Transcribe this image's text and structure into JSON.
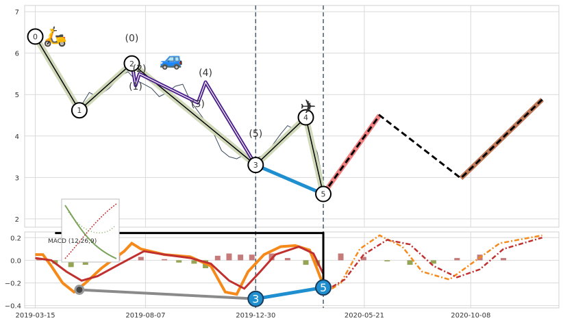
{
  "chart_data": [
    {
      "type": "line",
      "panel": "price",
      "x_range": [
        "2019-03-01",
        "2021-02-01"
      ],
      "ylim": [
        1.8,
        7.15
      ],
      "y_ticks": [
        2,
        3,
        4,
        5,
        6,
        7
      ],
      "grid": true,
      "vertical_markers": [
        "2019-12-30",
        "2020-03-28"
      ],
      "price_series": [
        [
          "2019-03-15",
          6.35
        ],
        [
          "2019-03-25",
          6.05
        ],
        [
          "2019-04-05",
          5.85
        ],
        [
          "2019-04-15",
          5.55
        ],
        [
          "2019-04-25",
          5.15
        ],
        [
          "2019-05-05",
          4.75
        ],
        [
          "2019-05-15",
          4.75
        ],
        [
          "2019-05-25",
          5.05
        ],
        [
          "2019-06-05",
          4.95
        ],
        [
          "2019-06-20",
          5.15
        ],
        [
          "2019-07-05",
          5.45
        ],
        [
          "2019-07-15",
          5.55
        ],
        [
          "2019-07-25",
          5.35
        ],
        [
          "2019-08-05",
          5.25
        ],
        [
          "2019-08-15",
          5.15
        ],
        [
          "2019-08-25",
          4.95
        ],
        [
          "2019-09-05",
          5.05
        ],
        [
          "2019-09-15",
          5.2
        ],
        [
          "2019-09-25",
          5.25
        ],
        [
          "2019-10-05",
          4.85
        ],
        [
          "2019-10-15",
          4.6
        ],
        [
          "2019-10-25",
          4.35
        ],
        [
          "2019-11-05",
          4.05
        ],
        [
          "2019-11-15",
          3.65
        ],
        [
          "2019-11-25",
          3.5
        ],
        [
          "2019-12-05",
          3.45
        ],
        [
          "2019-12-15",
          3.55
        ],
        [
          "2019-12-30",
          3.45
        ],
        [
          "2020-01-10",
          3.55
        ],
        [
          "2020-01-20",
          3.75
        ],
        [
          "2020-02-01",
          4.05
        ],
        [
          "2020-02-10",
          4.25
        ],
        [
          "2020-02-20",
          4.15
        ],
        [
          "2020-03-01",
          4.35
        ],
        [
          "2020-03-10",
          4.05
        ],
        [
          "2020-03-20",
          3.6
        ],
        [
          "2020-03-28",
          2.85
        ]
      ],
      "zigzag_levels": [
        {
          "label": "0",
          "date": "2019-03-15",
          "value": 6.4
        },
        {
          "label": "1",
          "date": "2019-05-12",
          "value": 4.62
        },
        {
          "label": "2",
          "date": "2019-07-20",
          "value": 5.75
        },
        {
          "label": "3",
          "date": "2019-12-30",
          "value": 3.3
        },
        {
          "label": "4",
          "date": "2020-03-05",
          "value": 4.45
        },
        {
          "label": "5",
          "date": "2020-03-28",
          "value": 2.6
        }
      ],
      "sub_wave_labels": [
        {
          "label": "(0)",
          "date": "2019-07-20",
          "value": 6.28
        },
        {
          "label": "(1)",
          "date": "2019-07-25",
          "value": 5.12
        },
        {
          "label": "(2)",
          "date": "2019-07-30",
          "value": 5.55
        },
        {
          "label": "(3)",
          "date": "2019-10-15",
          "value": 4.7
        },
        {
          "label": "(4)",
          "date": "2019-10-25",
          "value": 5.45
        },
        {
          "label": "(5)",
          "date": "2019-12-30",
          "value": 3.98
        }
      ],
      "sub_wave": [
        [
          "2019-07-20",
          5.75
        ],
        [
          "2019-07-25",
          5.22
        ],
        [
          "2019-07-30",
          5.5
        ],
        [
          "2019-10-15",
          4.8
        ],
        [
          "2019-10-25",
          5.3
        ],
        [
          "2019-12-30",
          3.3
        ]
      ],
      "connector_3_to_5": [
        [
          "2019-12-30",
          3.3
        ],
        [
          "2020-03-28",
          2.6
        ]
      ],
      "projection_pink": [
        [
          "2020-03-28",
          2.6
        ],
        [
          "2020-06-10",
          4.5
        ]
      ],
      "projection_path": [
        [
          "2020-03-28",
          2.6
        ],
        [
          "2020-06-10",
          4.5
        ],
        [
          "2020-09-25",
          2.98
        ],
        [
          "2021-01-10",
          4.88
        ]
      ],
      "projection_brown": [
        [
          "2020-09-25",
          2.98
        ],
        [
          "2021-01-10",
          4.88
        ]
      ],
      "icons": [
        {
          "name": "scooter-icon",
          "glyph": "🛵",
          "date": "2019-04-10",
          "value": 6.25
        },
        {
          "name": "car-icon",
          "glyph": "🚙",
          "date": "2019-09-10",
          "value": 5.7
        },
        {
          "name": "airplane-icon",
          "glyph": "✈",
          "date": "2020-03-08",
          "value": 4.55
        }
      ]
    },
    {
      "type": "line",
      "panel": "macd",
      "legend_label": "MACD (12,26,9)",
      "x_range": [
        "2019-03-01",
        "2021-02-01"
      ],
      "ylim": [
        -0.42,
        0.25
      ],
      "y_ticks": [
        0.2,
        0.0,
        -0.2,
        -0.4
      ],
      "tick_labels_y": [
        "0.2",
        "0.0",
        "−0.2",
        "−0.4"
      ],
      "x_tick_labels": [
        "2019-03-15",
        "2019-08-07",
        "2019-12-30",
        "2020-05-21",
        "2020-10-08"
      ],
      "x_ticks": [
        "2019-03-15",
        "2019-08-07",
        "2019-12-30",
        "2020-05-21",
        "2020-10-08"
      ],
      "grid": true,
      "macd_orange": [
        [
          "2019-03-15",
          0.05
        ],
        [
          "2019-03-25",
          0.05
        ],
        [
          "2019-04-05",
          -0.05
        ],
        [
          "2019-04-20",
          -0.2
        ],
        [
          "2019-05-05",
          -0.28
        ],
        [
          "2019-05-20",
          -0.2
        ],
        [
          "2019-06-10",
          -0.07
        ],
        [
          "2019-07-10",
          0.08
        ],
        [
          "2019-07-20",
          0.15
        ],
        [
          "2019-08-01",
          0.1
        ],
        [
          "2019-09-01",
          0.05
        ],
        [
          "2019-10-05",
          0.03
        ],
        [
          "2019-11-01",
          -0.05
        ],
        [
          "2019-11-20",
          -0.28
        ],
        [
          "2019-12-05",
          -0.3
        ],
        [
          "2019-12-20",
          -0.1
        ],
        [
          "2020-01-10",
          0.05
        ],
        [
          "2020-02-01",
          0.12
        ],
        [
          "2020-02-20",
          0.13
        ],
        [
          "2020-03-10",
          0.09
        ],
        [
          "2020-03-20",
          -0.08
        ],
        [
          "2020-03-28",
          -0.22
        ]
      ],
      "macd_red": [
        [
          "2019-03-15",
          0.02
        ],
        [
          "2019-04-05",
          0.0
        ],
        [
          "2019-04-25",
          -0.1
        ],
        [
          "2019-05-15",
          -0.18
        ],
        [
          "2019-06-05",
          -0.14
        ],
        [
          "2019-07-05",
          -0.03
        ],
        [
          "2019-08-05",
          0.08
        ],
        [
          "2019-09-01",
          0.05
        ],
        [
          "2019-10-05",
          0.02
        ],
        [
          "2019-11-01",
          -0.03
        ],
        [
          "2019-11-25",
          -0.18
        ],
        [
          "2019-12-15",
          -0.25
        ],
        [
          "2020-01-05",
          -0.1
        ],
        [
          "2020-01-25",
          0.05
        ],
        [
          "2020-02-25",
          0.12
        ],
        [
          "2020-03-15",
          0.06
        ],
        [
          "2020-03-28",
          -0.12
        ]
      ],
      "macd_proj_orange": [
        [
          "2020-03-28",
          -0.3
        ],
        [
          "2020-04-20",
          -0.2
        ],
        [
          "2020-05-15",
          0.1
        ],
        [
          "2020-06-10",
          0.22
        ],
        [
          "2020-07-10",
          0.12
        ],
        [
          "2020-08-05",
          -0.1
        ],
        [
          "2020-09-10",
          -0.17
        ],
        [
          "2020-10-15",
          0.0
        ],
        [
          "2020-11-15",
          0.15
        ],
        [
          "2021-01-10",
          0.22
        ]
      ],
      "macd_proj_red": [
        [
          "2020-03-28",
          -0.28
        ],
        [
          "2020-04-25",
          -0.17
        ],
        [
          "2020-05-20",
          0.05
        ],
        [
          "2020-06-20",
          0.18
        ],
        [
          "2020-07-20",
          0.14
        ],
        [
          "2020-08-20",
          -0.05
        ],
        [
          "2020-09-20",
          -0.15
        ],
        [
          "2020-10-20",
          -0.08
        ],
        [
          "2020-11-20",
          0.1
        ],
        [
          "2021-01-10",
          0.2
        ]
      ],
      "histogram": [
        [
          "2019-03-20",
          0.02
        ],
        [
          "2019-04-10",
          -0.03
        ],
        [
          "2019-05-01",
          -0.06
        ],
        [
          "2019-05-20",
          -0.04
        ],
        [
          "2019-06-10",
          0.03
        ],
        [
          "2019-07-01",
          0.04
        ],
        [
          "2019-08-01",
          0.03
        ],
        [
          "2019-09-01",
          0.01
        ],
        [
          "2019-09-20",
          -0.02
        ],
        [
          "2019-10-10",
          -0.03
        ],
        [
          "2019-10-25",
          -0.07
        ],
        [
          "2019-11-10",
          0.04
        ],
        [
          "2019-11-25",
          0.06
        ],
        [
          "2019-12-10",
          0.05
        ],
        [
          "2019-12-25",
          0.05
        ],
        [
          "2020-01-20",
          0.06
        ],
        [
          "2020-02-10",
          0.02
        ],
        [
          "2020-03-05",
          -0.04
        ],
        [
          "2020-03-20",
          -0.05
        ],
        [
          "2020-04-20",
          0.06
        ],
        [
          "2020-05-20",
          0.03
        ],
        [
          "2020-06-20",
          -0.01
        ],
        [
          "2020-07-20",
          -0.04
        ],
        [
          "2020-08-20",
          -0.03
        ],
        [
          "2020-09-20",
          0.02
        ],
        [
          "2020-10-20",
          0.05
        ],
        [
          "2020-11-20",
          0.02
        ]
      ],
      "gray_connector": [
        [
          "2019-05-12",
          -0.26
        ],
        [
          "2019-12-30",
          -0.34
        ]
      ],
      "blue_connector": [
        [
          "2019-12-30",
          -0.34
        ],
        [
          "2020-03-28",
          -0.24
        ]
      ],
      "markers": [
        {
          "label": "",
          "date": "2019-05-12",
          "value": -0.26,
          "style": "gray-dot"
        },
        {
          "label": "3",
          "date": "2019-12-30",
          "value": -0.34,
          "style": "blue-circle"
        },
        {
          "label": "5",
          "date": "2020-03-28",
          "value": -0.24,
          "style": "blue-circle"
        }
      ],
      "bracket_top_value": 0.24,
      "bracket_from": "2019-04-10",
      "bracket_to": "2020-03-28",
      "bracket_down_to": -0.22
    }
  ],
  "colors": {
    "price_line": "#3a4a5c",
    "zigzag_fill": "#cfd8b8",
    "zigzag_line": "#000000",
    "sub_wave": "#4b1e8c",
    "connector_blue": "#1f8fd0",
    "projection_pink": "#f08080",
    "projection_black": "#000000",
    "projection_brown": "#c07a5a",
    "vline": "#4a5a6a",
    "macd_orange": "#f58a1a",
    "macd_red": "#c0302e",
    "hist_pos": "#b85a5a",
    "hist_neg": "#7a8f2a",
    "grid": "#d9d9d9"
  }
}
